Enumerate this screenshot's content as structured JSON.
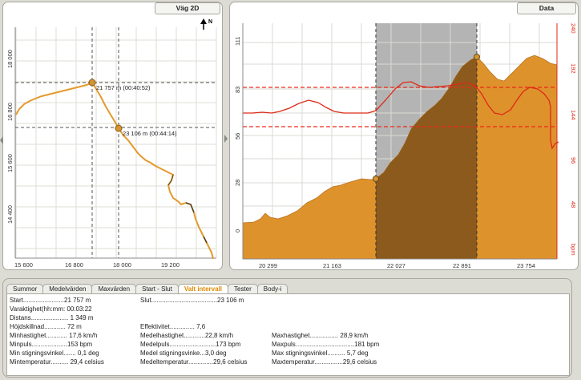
{
  "left_panel": {
    "tab_label": "Väg 2D",
    "north_label": "N",
    "y_ticks": [
      "18 000",
      "16 800",
      "15 600",
      "14 400"
    ],
    "x_ticks": [
      "15 600",
      "16 800",
      "18 000",
      "19 200"
    ],
    "markers": [
      {
        "label": "21 757 m (00:40:52)"
      },
      {
        "label": "23 106 m (00:44:14)"
      }
    ]
  },
  "right_panel": {
    "tab_label": "Data",
    "x_ticks": [
      "20 299",
      "21 163",
      "22 027",
      "22 891",
      "23 754"
    ],
    "left_ticks": [
      "111",
      "83",
      "56",
      "28",
      "0"
    ],
    "right_ticks": [
      "240",
      "192",
      "144",
      "96",
      "48"
    ],
    "right_unit": "bpm",
    "colors": {
      "elevation": "#de922c",
      "selection": "#b4b4b4",
      "heart_rate": "#dd2a16"
    }
  },
  "tabs": [
    {
      "label": "Summor",
      "active": false
    },
    {
      "label": "Medelvärden",
      "active": false
    },
    {
      "label": "Maxvärden",
      "active": false
    },
    {
      "label": "Start - Slut",
      "active": false
    },
    {
      "label": "Valt intervall",
      "active": true
    },
    {
      "label": "Tester",
      "active": false
    },
    {
      "label": "Body-i",
      "active": false
    }
  ],
  "stats": {
    "start": {
      "label": "Start",
      "value": "21 757 m"
    },
    "slut": {
      "label": "Slut",
      "value": "23 106 m"
    },
    "varaktighet": {
      "label": "Varaktighet(hh:mm:",
      "value": "00:03:22"
    },
    "distans": {
      "label": "Distans",
      "value": "1 349 m"
    },
    "hojdskillnad": {
      "label": "Höjdskillnad",
      "value": "72 m"
    },
    "effektivitet": {
      "label": "Effektivitet",
      "value": "7,6"
    },
    "minhastighet": {
      "label": "Minhastighet",
      "value": "17,6 km/h"
    },
    "medelhastighet": {
      "label": "Medelhastighet",
      "value": "22,8 km/h"
    },
    "maxhastighet": {
      "label": "Maxhastighet",
      "value": "28,9 km/h"
    },
    "minpuls": {
      "label": "Minpuls",
      "value": "153 bpm"
    },
    "medelpuls": {
      "label": "Medelpuls",
      "value": "173 bpm"
    },
    "maxpuls": {
      "label": "Maxpuls",
      "value": "181 bpm"
    },
    "min_stigning": {
      "label": "Min stigningsvinkel",
      "value": "0,1 deg"
    },
    "medel_stigning": {
      "label": "Medel stigningsvinke",
      "value": "3,0 deg"
    },
    "max_stigning": {
      "label": "Max stigningsvinkel",
      "value": "5,7 deg"
    },
    "mintemp": {
      "label": "Mintemperatur",
      "value": "29,4 celsius"
    },
    "medeltemp": {
      "label": "Medeltemperatur",
      "value": "29,6 celsius"
    },
    "maxtemp": {
      "label": "Maxtemperatur",
      "value": "29,6 celsius"
    }
  }
}
